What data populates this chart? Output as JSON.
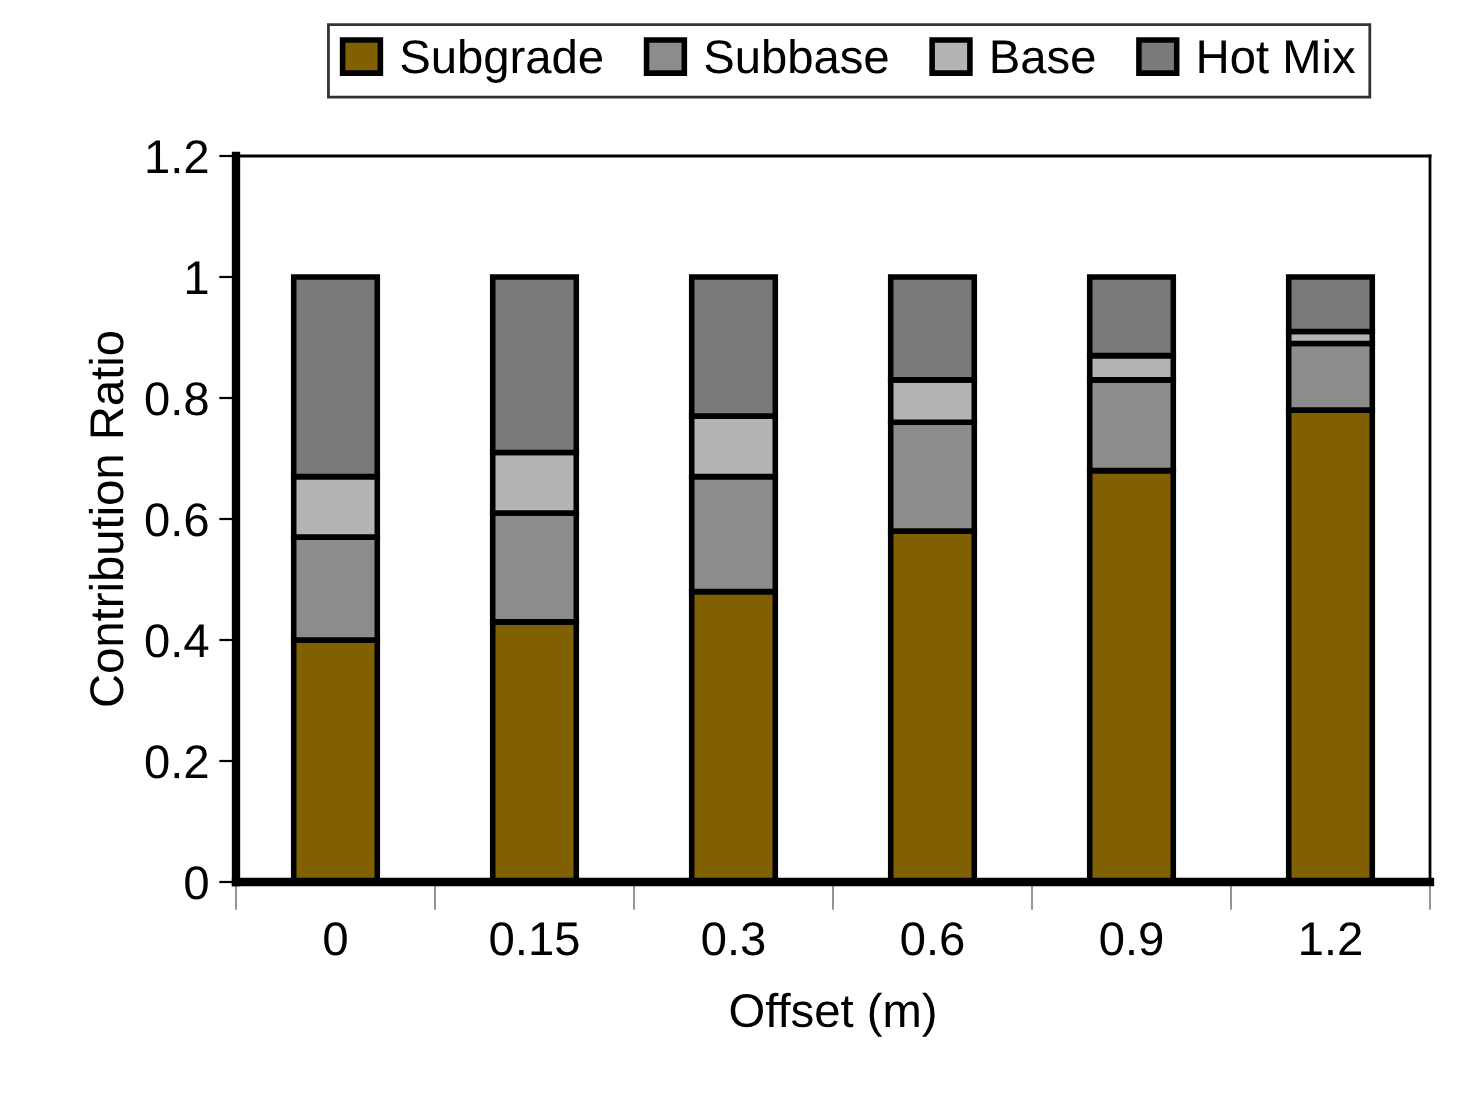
{
  "chart_data": {
    "type": "bar",
    "stacked": true,
    "xlabel": "Offset (m)",
    "ylabel": "Contribution Ratio",
    "categories": [
      "0",
      "0.15",
      "0.3",
      "0.6",
      "0.9",
      "1.2"
    ],
    "series": [
      {
        "name": "Subgrade",
        "color": "#806000",
        "values": [
          0.4,
          0.43,
          0.48,
          0.58,
          0.68,
          0.78
        ]
      },
      {
        "name": "Subbase",
        "color": "#8c8c8c",
        "values": [
          0.17,
          0.18,
          0.19,
          0.18,
          0.15,
          0.11
        ]
      },
      {
        "name": "Base",
        "color": "#b4b4b4",
        "values": [
          0.1,
          0.1,
          0.1,
          0.07,
          0.04,
          0.02
        ]
      },
      {
        "name": "Hot Mix",
        "color": "#7a7a7a",
        "values": [
          0.33,
          0.29,
          0.23,
          0.17,
          0.13,
          0.09
        ]
      }
    ],
    "ylim": [
      0,
      1.2
    ],
    "yticks": [
      0,
      0.2,
      0.4,
      0.6,
      0.8,
      1,
      1.2
    ],
    "grid": false,
    "legend": "top"
  }
}
